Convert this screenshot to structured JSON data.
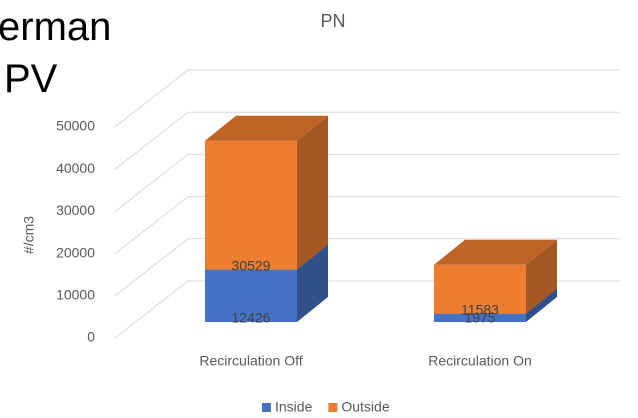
{
  "slide_text": {
    "line1": "erman",
    "line2": "PV"
  },
  "chart_data": {
    "type": "bar3d_stacked",
    "title": "PN",
    "y_label": "#/cm3",
    "categories": [
      "Recirculation Off",
      "Recirculation On"
    ],
    "series": [
      {
        "name": "Inside",
        "color": "#4472c4",
        "values": [
          12426,
          1975
        ]
      },
      {
        "name": "Outside",
        "color": "#ed7d31",
        "values": [
          30529,
          11583
        ]
      }
    ],
    "ylim": [
      0,
      50000
    ],
    "yticks": [
      0,
      10000,
      20000,
      30000,
      40000,
      50000
    ],
    "grid": true,
    "legend": "bottom"
  }
}
